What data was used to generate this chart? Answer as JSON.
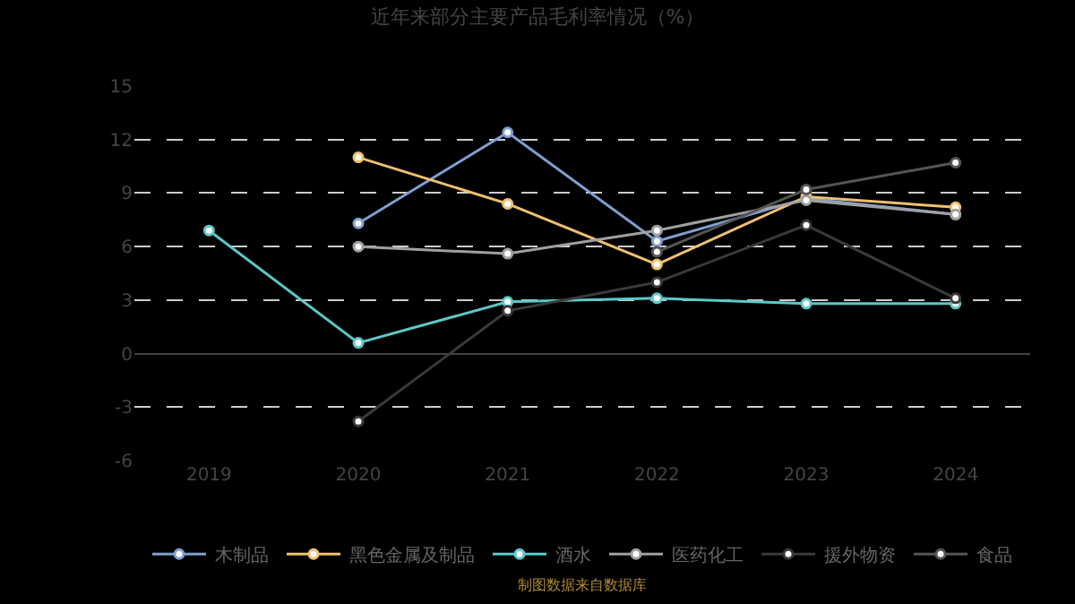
{
  "chart_data": {
    "type": "line",
    "title": "近年来部分主要产品毛利率情况（%）",
    "categories": [
      "2019",
      "2020",
      "2021",
      "2022",
      "2023",
      "2024"
    ],
    "series": [
      {
        "name": "木制品",
        "color": "#7f9fd0",
        "values": [
          null,
          7.3,
          12.4,
          6.3,
          8.7,
          7.8
        ]
      },
      {
        "name": "黑色金属及制品",
        "color": "#f0c070",
        "values": [
          null,
          11.0,
          8.4,
          5.0,
          8.8,
          8.2
        ]
      },
      {
        "name": "酒水",
        "color": "#5cc8c8",
        "values": [
          6.9,
          0.6,
          2.9,
          3.1,
          2.8,
          2.8
        ]
      },
      {
        "name": "医药化工",
        "color": "#a0a0a0",
        "values": [
          null,
          6.0,
          5.6,
          6.9,
          8.6,
          7.8
        ]
      },
      {
        "name": "援外物资",
        "color": "#3a3a3a",
        "values": [
          null,
          -3.8,
          2.4,
          4.0,
          7.2,
          3.1
        ]
      },
      {
        "name": "食品",
        "color": "#555555",
        "values": [
          null,
          null,
          null,
          5.7,
          9.2,
          10.7
        ]
      }
    ],
    "ylim": [
      -6,
      15
    ],
    "yticks": [
      -6,
      -3,
      0,
      3,
      6,
      9,
      12,
      15
    ],
    "grid": "y",
    "legend": "bottom",
    "marker": "circle",
    "line_style": "solid",
    "annotations": [
      "制图数据来自数据库"
    ]
  }
}
